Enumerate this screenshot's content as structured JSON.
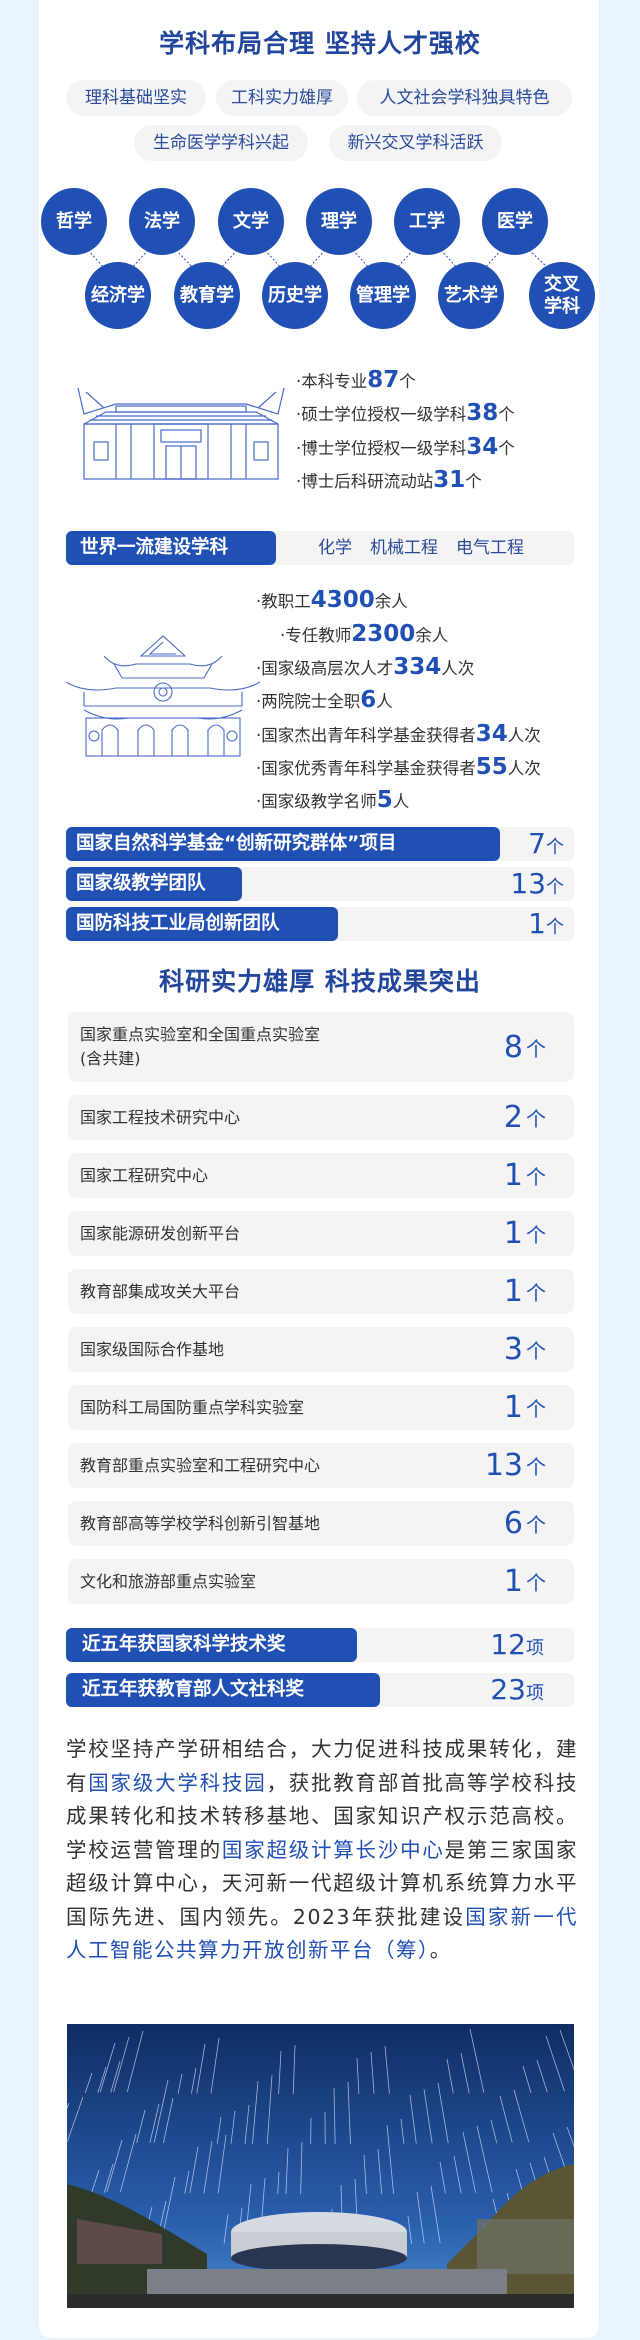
{
  "section1": {
    "title": "学科布局合理 坚持人才强校",
    "tags": [
      "理科基础坚实",
      "工科实力雄厚",
      "人文社会学科独具特色",
      "生命医学学科兴起",
      "新兴交叉学科活跃"
    ],
    "disciplines_top": [
      "哲学",
      "法学",
      "文学",
      "理学",
      "工学",
      "医学"
    ],
    "disciplines_bottom": [
      "经济学",
      "教育学",
      "历史学",
      "管理学",
      "艺术学",
      "交叉学科"
    ],
    "programs": [
      {
        "pre": "本科专业",
        "num": "87",
        "post": "个"
      },
      {
        "pre": "硕士学位授权一级学科",
        "num": "38",
        "post": "个"
      },
      {
        "pre": "博士学位授权一级学科",
        "num": "34",
        "post": "个"
      },
      {
        "pre": "博士后科研流动站",
        "num": "31",
        "post": "个"
      }
    ],
    "world_class": {
      "label": "世界一流建设学科",
      "items": [
        "化学",
        "机械工程",
        "电气工程"
      ]
    },
    "staff": [
      {
        "pre": "教职工",
        "num": "4300",
        "post": "余人"
      },
      {
        "pre": "专任教师",
        "num": "2300",
        "post": "余人"
      },
      {
        "pre": "国家级高层次人才",
        "num": "334",
        "post": "人次"
      },
      {
        "pre": "两院院士全职",
        "num": "6",
        "post": "人"
      },
      {
        "pre": "国家杰出青年科学基金获得者",
        "num": "34",
        "post": "人次"
      },
      {
        "pre": "国家优秀青年科学基金获得者",
        "num": "55",
        "post": "人次"
      },
      {
        "pre": "国家级教学名师",
        "num": "5",
        "post": "人"
      }
    ],
    "teams": [
      {
        "label": "国家自然科学基金“创新研究群体”项目",
        "num": "7",
        "unit": "个"
      },
      {
        "label": "国家级教学团队",
        "num": "13",
        "unit": "个"
      },
      {
        "label": "国防科技工业局创新团队",
        "num": "1",
        "unit": "个"
      }
    ]
  },
  "section2": {
    "title": "科研实力雄厚 科技成果突出",
    "platforms": [
      {
        "label": "国家重点实验室和全国重点实验室\n(含共建)",
        "num": "8",
        "unit": "个"
      },
      {
        "label": "国家工程技术研究中心",
        "num": "2",
        "unit": "个"
      },
      {
        "label": "国家工程研究中心",
        "num": "1",
        "unit": "个"
      },
      {
        "label": "国家能源研发创新平台",
        "num": "1",
        "unit": "个"
      },
      {
        "label": "教育部集成攻关大平台",
        "num": "1",
        "unit": "个"
      },
      {
        "label": "国家级国际合作基地",
        "num": "3",
        "unit": "个"
      },
      {
        "label": "国防科工局国防重点学科实验室",
        "num": "1",
        "unit": "个"
      },
      {
        "label": "教育部重点实验室和工程研究中心",
        "num": "13",
        "unit": "个"
      },
      {
        "label": "教育部高等学校学科创新引智基地",
        "num": "6",
        "unit": "个"
      },
      {
        "label": "文化和旅游部重点实验室",
        "num": "1",
        "unit": "个"
      }
    ],
    "awards": [
      {
        "label": "近五年获国家科学技术奖",
        "num": "12",
        "unit": "项"
      },
      {
        "label": "近五年获教育部人文社科奖",
        "num": "23",
        "unit": "项"
      }
    ],
    "paragraph": [
      {
        "t": "学校坚持产学研相结合，大力促进科技成果转化，建有"
      },
      {
        "t": "国家级大学科技园",
        "hl": true
      },
      {
        "t": "，获批教育部首批高等学校科技成果转化和技术转移基地、国家知识产权示范高校。学校运营管理的"
      },
      {
        "t": "国家超级计算长沙中心",
        "hl": true
      },
      {
        "t": "是第三家国家超级计算中心，天河新一代超级计算机系统算力水平国际先进、国内领先。2023年获批建设"
      },
      {
        "t": "国家新一代人工智能公共算力开放创新平台（筹）",
        "hl": true
      },
      {
        "t": "。"
      }
    ]
  },
  "colors": {
    "accent": "#2150b5",
    "title": "#22469c",
    "background": "#eaf4fd",
    "chip": "#f4f4f4"
  }
}
